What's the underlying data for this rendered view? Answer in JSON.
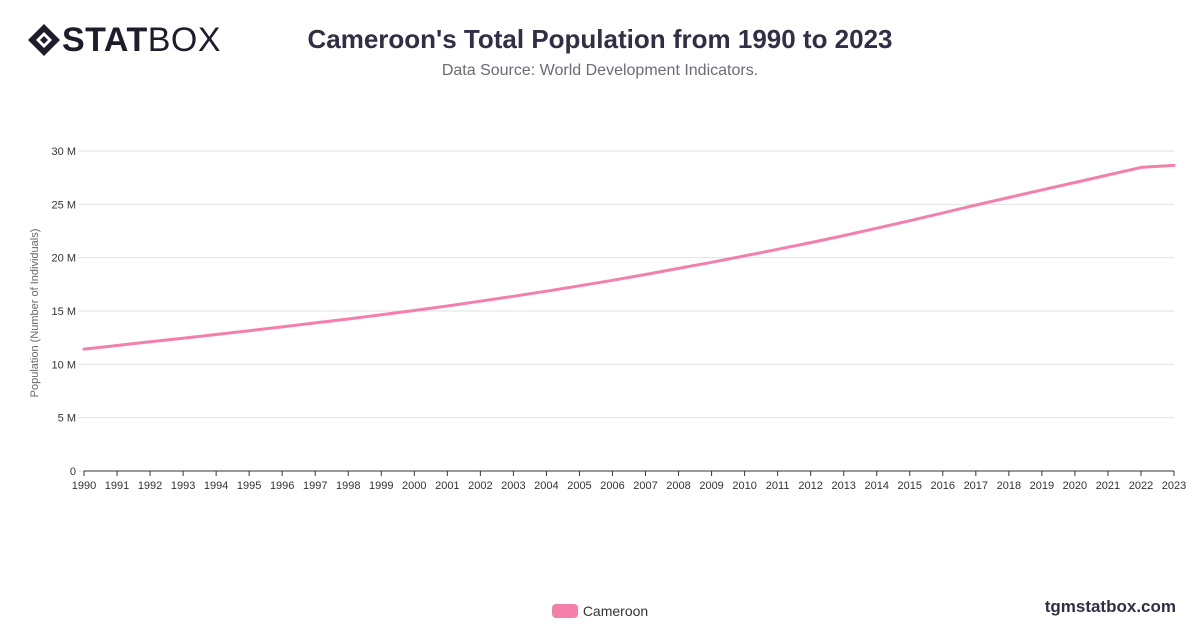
{
  "brand": {
    "logo_bold": "STAT",
    "logo_light": "BOX",
    "watermark": "tgmstatbox.com"
  },
  "header": {
    "title": "Cameroon's Total Population from 1990 to 2023",
    "subtitle": "Data Source: World Development Indicators."
  },
  "colors": {
    "series": "#f47fab",
    "grid": "#e2e2e2",
    "axis": "#333333",
    "text": "#2f2f45"
  },
  "chart_data": {
    "type": "line",
    "title": "Cameroon's Total Population from 1990 to 2023",
    "subtitle": "Data Source: World Development Indicators.",
    "ylabel": "Population (Number of Individuals)",
    "xlabel": "",
    "ylim": [
      0,
      30000000
    ],
    "yticks": [
      0,
      5000000,
      10000000,
      15000000,
      20000000,
      25000000,
      30000000
    ],
    "ytick_labels": [
      "0",
      "5 M",
      "10 M",
      "15 M",
      "20 M",
      "25 M",
      "30 M"
    ],
    "grid": true,
    "legend_position": "bottom-center",
    "x": [
      "1990",
      "1991",
      "1992",
      "1993",
      "1994",
      "1995",
      "1996",
      "1997",
      "1998",
      "1999",
      "2000",
      "2001",
      "2002",
      "2003",
      "2004",
      "2005",
      "2006",
      "2007",
      "2008",
      "2009",
      "2010",
      "2011",
      "2012",
      "2013",
      "2014",
      "2015",
      "2016",
      "2017",
      "2018",
      "2019",
      "2020",
      "2021",
      "2022",
      "2023"
    ],
    "series": [
      {
        "name": "Cameroon",
        "color": "#f47fab",
        "values": [
          11430000,
          11770000,
          12110000,
          12450000,
          12800000,
          13150000,
          13510000,
          13880000,
          14250000,
          14640000,
          15050000,
          15470000,
          15920000,
          16380000,
          16860000,
          17360000,
          17880000,
          18420000,
          18990000,
          19570000,
          20170000,
          20780000,
          21410000,
          22070000,
          22760000,
          23470000,
          24200000,
          24930000,
          25640000,
          26350000,
          27050000,
          27750000,
          28460000,
          28650000
        ]
      }
    ]
  }
}
